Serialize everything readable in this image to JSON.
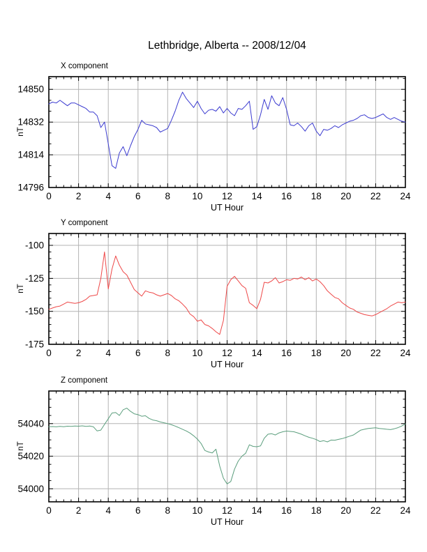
{
  "page": {
    "title": "Lethbridge, Alberta -- 2008/12/04"
  },
  "chart_data": [
    {
      "type": "line",
      "title": "X component",
      "ylabel": "nT",
      "xlabel": "UT Hour",
      "color": "#3b3bd0",
      "grid_color": "#b3b3b3",
      "x_range": [
        0,
        24
      ],
      "x_step_hours": 0.25,
      "xticks_major": 2,
      "xticks_minor": 0.5,
      "xtick_labels": [
        "0",
        "2",
        "4",
        "6",
        "8",
        "10",
        "12",
        "14",
        "16",
        "18",
        "20",
        "22",
        "24"
      ],
      "ylim": [
        14796,
        14857
      ],
      "yticks": [
        14796,
        14814,
        14832,
        14850
      ],
      "ytick_minor": 6,
      "values": [
        14842,
        14843,
        14842.5,
        14844,
        14842.5,
        14841,
        14842.5,
        14842.5,
        14841.5,
        14840.5,
        14839.5,
        14837.5,
        14837.5,
        14835.5,
        14829,
        14832,
        14820,
        14808,
        14806.5,
        14815,
        14818.5,
        14813.5,
        14819,
        14824,
        14828,
        14833,
        14831,
        14830.5,
        14830,
        14829,
        14826.5,
        14827.5,
        14828.5,
        14833,
        14838,
        14844,
        14848.5,
        14845,
        14842.5,
        14840,
        14843.5,
        14839.5,
        14836.5,
        14838.5,
        14839,
        14838,
        14840.5,
        14837,
        14839.5,
        14837,
        14835.5,
        14839.5,
        14839,
        14841,
        14843.5,
        14828,
        14829.5,
        14836,
        14844.5,
        14839,
        14846.5,
        14842.5,
        14841,
        14845.5,
        14839,
        14830.5,
        14830,
        14831.5,
        14829.5,
        14827,
        14830,
        14831.5,
        14827,
        14824.5,
        14828,
        14827.5,
        14828.5,
        14830,
        14829,
        14830.5,
        14831.5,
        14832.5,
        14833,
        14834,
        14835.5,
        14836,
        14834.5,
        14834,
        14834.5,
        14835.5,
        14836.5,
        14834.5,
        14833.5,
        14834.5,
        14833.5,
        14832.5,
        14832
      ]
    },
    {
      "type": "line",
      "title": "Y component",
      "ylabel": "nT",
      "xlabel": "UT Hour",
      "color": "#ee4848",
      "grid_color": "#b3b3b3",
      "x_range": [
        0,
        24
      ],
      "x_step_hours": 0.25,
      "xticks_major": 2,
      "xticks_minor": 0.5,
      "xtick_labels": [
        "0",
        "2",
        "4",
        "6",
        "8",
        "10",
        "12",
        "14",
        "16",
        "18",
        "20",
        "22",
        "24"
      ],
      "ylim": [
        -175,
        -91
      ],
      "yticks": [
        -175,
        -150,
        -125,
        -100
      ],
      "ytick_minor": 5,
      "values": [
        -148.5,
        -147.5,
        -146.5,
        -146,
        -144.5,
        -143,
        -143.5,
        -144,
        -143.5,
        -142.5,
        -141,
        -138.5,
        -138,
        -137.5,
        -125,
        -105,
        -133,
        -118,
        -108,
        -115,
        -120,
        -122.5,
        -128,
        -133.5,
        -136,
        -138.5,
        -134.5,
        -135.5,
        -136,
        -137.5,
        -138.5,
        -137.5,
        -136.5,
        -138,
        -140.5,
        -142,
        -144.5,
        -147.5,
        -152,
        -154,
        -157.5,
        -156.5,
        -160,
        -161,
        -163,
        -165.5,
        -167.5,
        -157,
        -131,
        -126,
        -123.5,
        -127,
        -130.5,
        -132.5,
        -143.5,
        -145.5,
        -148,
        -141,
        -128,
        -128.5,
        -127,
        -124.5,
        -128.5,
        -127.5,
        -126,
        -126.5,
        -125,
        -125.5,
        -124,
        -126,
        -124.5,
        -127,
        -125.5,
        -127.5,
        -130.5,
        -134.5,
        -137,
        -139.5,
        -140.5,
        -143.5,
        -145.5,
        -147.5,
        -148.5,
        -150.5,
        -151.5,
        -152.5,
        -153,
        -153.5,
        -152.5,
        -151,
        -149.5,
        -148,
        -146,
        -144.5,
        -143,
        -143.5,
        -143
      ]
    },
    {
      "type": "line",
      "title": "Z component",
      "ylabel": "nT",
      "xlabel": "UT Hour",
      "color": "#5b9e7d",
      "grid_color": "#b3b3b3",
      "x_range": [
        0,
        24
      ],
      "x_step_hours": 0.25,
      "xticks_major": 2,
      "xticks_minor": 0.5,
      "xtick_labels": [
        "0",
        "2",
        "4",
        "6",
        "8",
        "10",
        "12",
        "14",
        "16",
        "18",
        "20",
        "22",
        "24"
      ],
      "ylim": [
        53992,
        54060
      ],
      "yticks": [
        54000,
        54020,
        54040
      ],
      "ytick_minor": 5,
      "values": [
        54038,
        54038.2,
        54038,
        54038.3,
        54038.1,
        54038.4,
        54038.3,
        54038.5,
        54038.4,
        54038.6,
        54038.3,
        54038.5,
        54038,
        54035.5,
        54036,
        54039.5,
        54043,
        54046.5,
        54046.8,
        54045,
        54048.5,
        54049.5,
        54047.5,
        54046,
        54045.5,
        54044.5,
        54044.8,
        54043.2,
        54042.2,
        54041.8,
        54041,
        54040.5,
        54040,
        54039.3,
        54038.5,
        54037.5,
        54036.5,
        54035.5,
        54034.2,
        54032.5,
        54030.5,
        54027.8,
        54023.5,
        54022.6,
        54022,
        54024.3,
        54014,
        54006.5,
        54003,
        54004.5,
        54012,
        54017,
        54020,
        54021.8,
        54027,
        54026,
        54025.8,
        54026.3,
        54031,
        54033.5,
        54033.8,
        54033,
        54034.3,
        54035,
        54035.4,
        54035.2,
        54035,
        54034.3,
        54033.5,
        54032.5,
        54031.6,
        54031,
        54030.2,
        54029,
        54029.5,
        54028.8,
        54029.9,
        54029.8,
        54030.3,
        54030.8,
        54031.5,
        54032.3,
        54033,
        54034.5,
        54036,
        54036.5,
        54037,
        54037.2,
        54037.4,
        54037,
        54036.8,
        54036.5,
        54036.3,
        54036.8,
        54037.5,
        54038.5,
        54039.8
      ]
    }
  ]
}
